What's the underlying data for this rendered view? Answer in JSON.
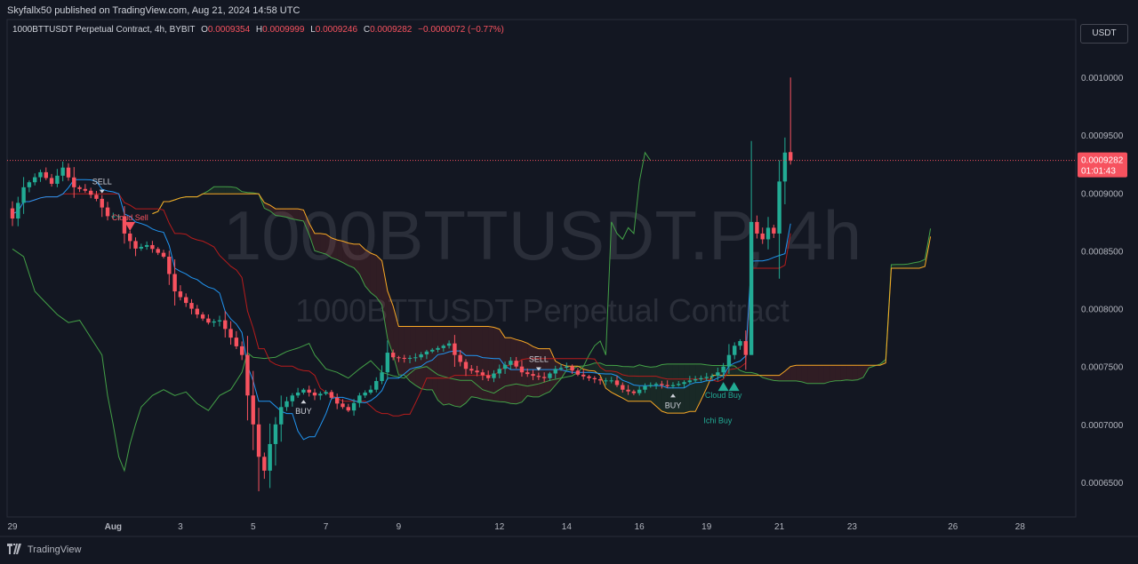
{
  "publisher_line": "Skyfallx50 published on TradingView.com, Aug 21, 2024 14:58 UTC",
  "symbol_line": "1000BTTUSDT Perpetual Contract, 4h, BYBIT",
  "ohlc": {
    "o_label": "O",
    "o": "0.0009354",
    "h_label": "H",
    "h": "0.0009999",
    "l_label": "L",
    "l": "0.0009246",
    "c_label": "C",
    "c": "0.0009282",
    "change": "−0.0000072 (−0.77%)"
  },
  "currency": "USDT",
  "watermark": {
    "symbol": "1000BTTUSDT.P, 4h",
    "description": "1000BTTUSDT Perpetual Contract"
  },
  "footer_brand": "TradingView",
  "colors": {
    "up": "#22ab94",
    "down": "#f7525f",
    "background": "#131722",
    "tenkan": "#2196f3",
    "kijun": "#b71c1c",
    "chikou": "#43a047",
    "span_a": "#43a047",
    "span_b": "#f9a825"
  },
  "chart_data": {
    "type": "line",
    "subtype": "candlestick-with-ichimoku",
    "timeframe": "4h",
    "x_tick_labels": [
      "29",
      "Aug",
      "3",
      "5",
      "7",
      "9",
      "12",
      "14",
      "16",
      "19",
      "21",
      "23",
      "26",
      "28"
    ],
    "y_tick_labels": [
      "0.0010000",
      "0.0009500",
      "0.0009000",
      "0.0008500",
      "0.0008000",
      "0.0007500",
      "0.0007000",
      "0.0006500"
    ],
    "ylim": [
      0.00062,
      0.00105
    ],
    "last_price": "0.0009282",
    "countdown": "01:01:43",
    "close_path": [
      [
        0,
        0.000878
      ],
      [
        2,
        0.000905
      ],
      [
        5,
        0.000918
      ],
      [
        7,
        0.000908
      ],
      [
        9,
        0.000922
      ],
      [
        11,
        0.000905
      ],
      [
        13,
        0.000902
      ],
      [
        15,
        0.000895
      ],
      [
        17,
        0.00088
      ],
      [
        19,
        0.00088
      ],
      [
        20,
        0.000865
      ],
      [
        22,
        0.000852
      ],
      [
        24,
        0.000855
      ],
      [
        27,
        0.000845
      ],
      [
        29,
        0.000815
      ],
      [
        31,
        0.000805
      ],
      [
        33,
        0.000795
      ],
      [
        35,
        0.000788
      ],
      [
        37,
        0.00079
      ],
      [
        39,
        0.000775
      ],
      [
        41,
        0.00076
      ],
      [
        42,
        0.000725
      ],
      [
        43,
        0.0007
      ],
      [
        44,
        0.000672
      ],
      [
        45,
        0.00066
      ],
      [
        46,
        0.000683
      ],
      [
        47,
        0.0007
      ],
      [
        48,
        0.000715
      ],
      [
        50,
        0.000725
      ],
      [
        52,
        0.00073
      ],
      [
        54,
        0.000725
      ],
      [
        56,
        0.000728
      ],
      [
        58,
        0.000718
      ],
      [
        60,
        0.000712
      ],
      [
        62,
        0.000725
      ],
      [
        64,
        0.00073
      ],
      [
        66,
        0.000745
      ],
      [
        67,
        0.000762
      ],
      [
        68,
        0.000758
      ],
      [
        70,
        0.000757
      ],
      [
        72,
        0.000758
      ],
      [
        74,
        0.000763
      ],
      [
        76,
        0.000766
      ],
      [
        78,
        0.00077
      ],
      [
        79,
        0.00076
      ],
      [
        81,
        0.000748
      ],
      [
        83,
        0.000745
      ],
      [
        85,
        0.00074
      ],
      [
        87,
        0.000748
      ],
      [
        89,
        0.000755
      ],
      [
        91,
        0.000745
      ],
      [
        93,
        0.000742
      ],
      [
        95,
        0.00074
      ],
      [
        97,
        0.000748
      ],
      [
        99,
        0.00075
      ],
      [
        101,
        0.000743
      ],
      [
        103,
        0.00074
      ],
      [
        105,
        0.000738
      ],
      [
        107,
        0.000738
      ],
      [
        109,
        0.00073
      ],
      [
        111,
        0.000727
      ],
      [
        113,
        0.000733
      ],
      [
        115,
        0.000735
      ],
      [
        117,
        0.000733
      ],
      [
        119,
        0.000735
      ],
      [
        121,
        0.000738
      ],
      [
        123,
        0.00074
      ],
      [
        125,
        0.000742
      ],
      [
        126,
        0.000745
      ],
      [
        127,
        0.00075
      ],
      [
        128,
        0.00076
      ],
      [
        129,
        0.000768
      ],
      [
        130,
        0.000772
      ],
      [
        131,
        0.00076
      ],
      [
        132,
        0.000875
      ],
      [
        133,
        0.000865
      ],
      [
        134,
        0.00086
      ],
      [
        135,
        0.00087
      ],
      [
        136,
        0.000865
      ],
      [
        137,
        0.00091
      ],
      [
        138,
        0.000935
      ],
      [
        139,
        0.000928
      ]
    ],
    "series": [
      {
        "name": "Price (candles)",
        "color_up": "#22ab94",
        "color_down": "#f7525f"
      },
      {
        "name": "Conversion line",
        "color": "#2196f3"
      },
      {
        "name": "Base line",
        "color": "#b71c1c"
      },
      {
        "name": "Lagging span",
        "color": "#43a047"
      },
      {
        "name": "Leading span A",
        "color": "#43a047"
      },
      {
        "name": "Leading span B",
        "color": "#f9a825"
      }
    ],
    "signals": [
      {
        "label": "SELL",
        "bar": 16,
        "side": "above"
      },
      {
        "label": "Cloud Sell",
        "bar": 21,
        "side": "above"
      },
      {
        "label": "BUY",
        "bar": 52,
        "side": "below"
      },
      {
        "label": "SELL",
        "bar": 94,
        "side": "above"
      },
      {
        "label": "BUY",
        "bar": 118,
        "side": "below"
      },
      {
        "label": "Cloud Buy",
        "bar": 127,
        "side": "below"
      },
      {
        "label": "Ichi Buy",
        "bar": 126,
        "side": "below"
      }
    ]
  }
}
